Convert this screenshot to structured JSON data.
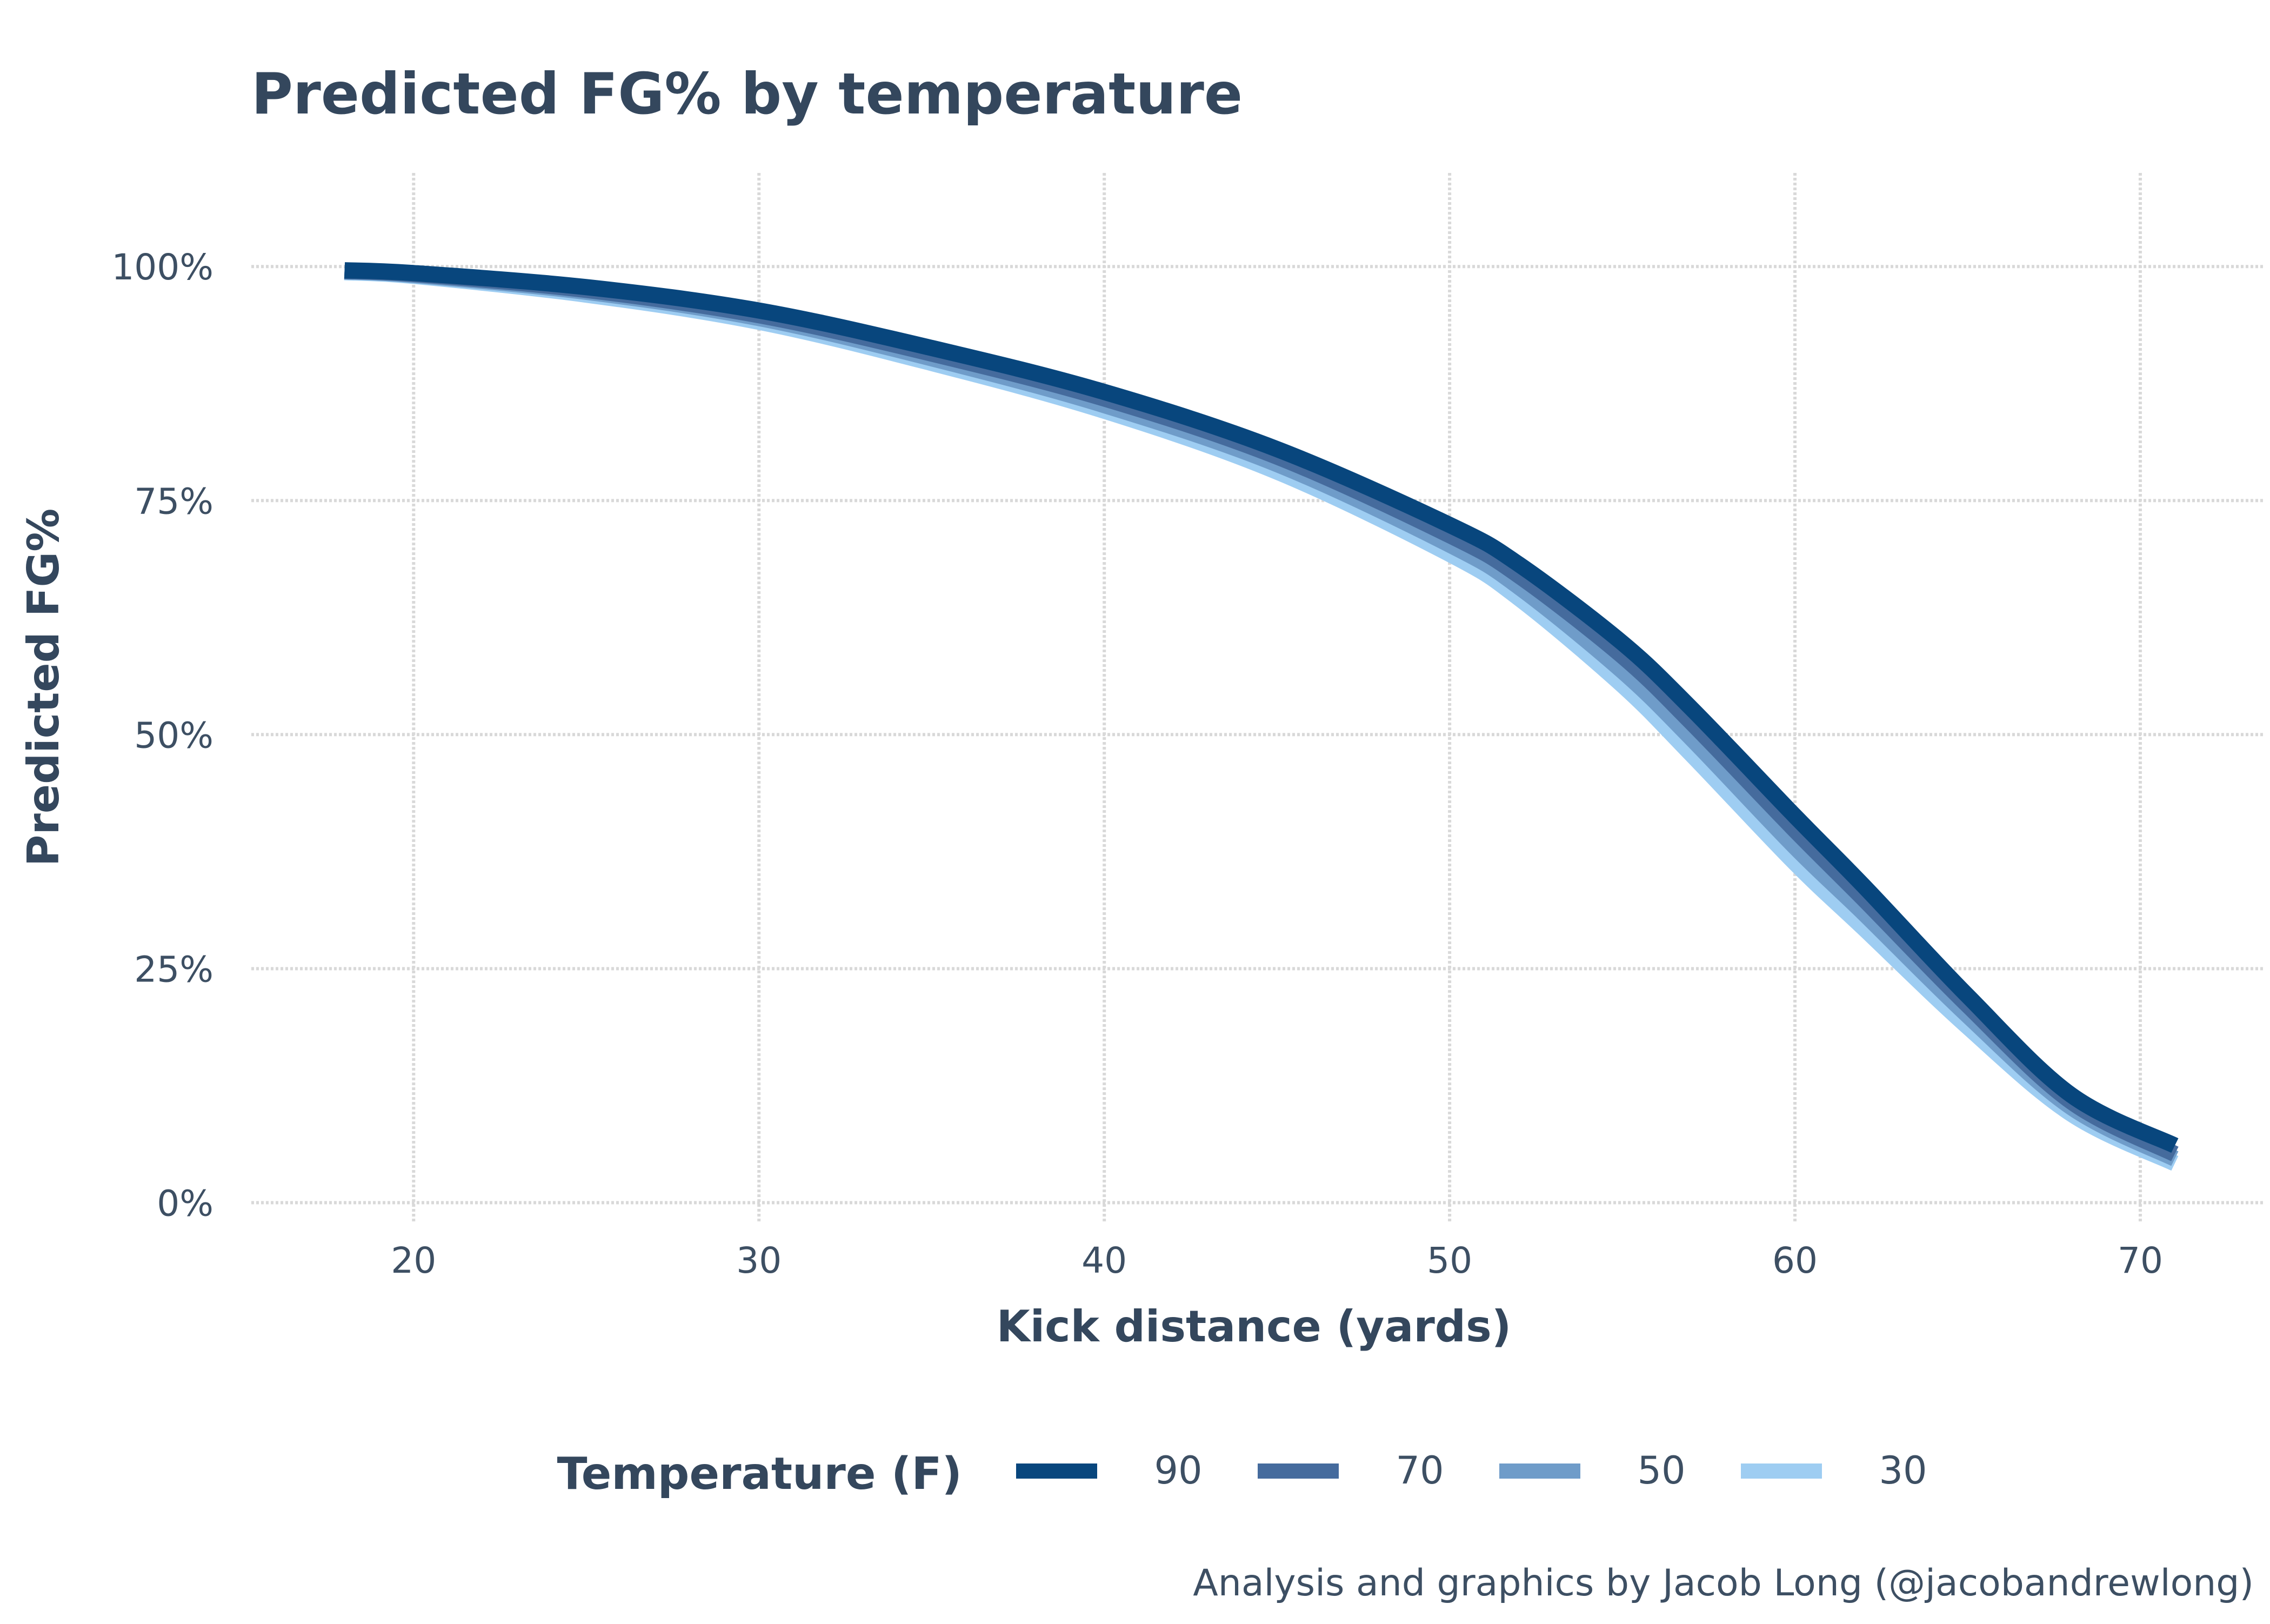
{
  "chart_data": {
    "type": "line",
    "title": "Predicted FG% by temperature",
    "xlabel": "Kick distance (yards)",
    "ylabel": "Predicted FG%",
    "xlim": [
      15.3,
      73.6
    ],
    "ylim": [
      -0.02,
      1.1
    ],
    "x_ticks": [
      20,
      30,
      40,
      50,
      60,
      70
    ],
    "x_tick_labels": [
      "20",
      "30",
      "40",
      "50",
      "60",
      "70"
    ],
    "y_ticks": [
      0,
      0.25,
      0.5,
      0.75,
      1.0
    ],
    "y_tick_labels": [
      "0%",
      "25%",
      "50%",
      "75%",
      "100%"
    ],
    "grid": true,
    "grid_style": "dotted",
    "legend_title": "Temperature (F)",
    "legend_position": "bottom",
    "caption": "Analysis and graphics by Jacob Long (@jacobandrewlong)",
    "x": [
      18,
      20,
      25,
      30,
      35,
      40,
      45,
      50,
      52,
      55,
      57,
      60,
      62,
      65,
      68,
      71
    ],
    "series": [
      {
        "name": "90",
        "color": "#08467d",
        "values": [
          0.996,
          0.993,
          0.978,
          0.953,
          0.913,
          0.866,
          0.805,
          0.724,
          0.682,
          0.598,
          0.528,
          0.413,
          0.338,
          0.221,
          0.115,
          0.061
        ]
      },
      {
        "name": "70",
        "color": "#456b9d",
        "values": [
          0.995,
          0.992,
          0.975,
          0.948,
          0.907,
          0.859,
          0.797,
          0.713,
          0.67,
          0.584,
          0.513,
          0.398,
          0.324,
          0.211,
          0.108,
          0.052
        ]
      },
      {
        "name": "50",
        "color": "#6f9cc9",
        "values": [
          0.995,
          0.991,
          0.973,
          0.945,
          0.902,
          0.852,
          0.789,
          0.703,
          0.658,
          0.568,
          0.496,
          0.38,
          0.309,
          0.2,
          0.102,
          0.047
        ]
      },
      {
        "name": "30",
        "color": "#9ecdf2",
        "values": [
          0.994,
          0.99,
          0.97,
          0.941,
          0.897,
          0.846,
          0.781,
          0.693,
          0.646,
          0.553,
          0.479,
          0.363,
          0.293,
          0.188,
          0.095,
          0.042
        ]
      }
    ]
  }
}
